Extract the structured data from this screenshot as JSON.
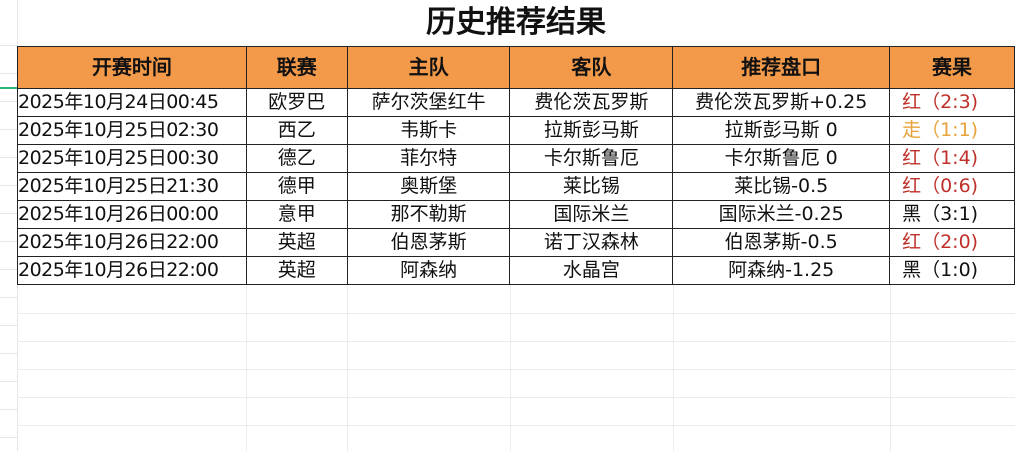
{
  "title": "历史推荐结果",
  "columns": [
    "开赛时间",
    "联赛",
    "主队",
    "客队",
    "推荐盘口",
    "赛果"
  ],
  "colors": {
    "header_bg": "#f39a4a",
    "red": "#c0302a",
    "push": "#e8a33a",
    "black": "#111111",
    "selection": "#2bb673"
  },
  "rows": [
    {
      "time": "2025年10月24日00:45",
      "league": "欧罗巴",
      "home": "萨尔茨堡红牛",
      "away": "费伦茨瓦罗斯",
      "pick": "费伦茨瓦罗斯+0.25",
      "result": "红（2:3)",
      "status": "red"
    },
    {
      "time": "2025年10月25日02:30",
      "league": "西乙",
      "home": "韦斯卡",
      "away": "拉斯彭马斯",
      "pick": "拉斯彭马斯 0",
      "result": "走（1:1)",
      "status": "push"
    },
    {
      "time": "2025年10月25日00:30",
      "league": "德乙",
      "home": "菲尔特",
      "away": "卡尔斯鲁厄",
      "pick": "卡尔斯鲁厄 0",
      "result": "红（1:4)",
      "status": "red"
    },
    {
      "time": "2025年10月25日21:30",
      "league": "德甲",
      "home": "奥斯堡",
      "away": "莱比锡",
      "pick": "莱比锡-0.5",
      "result": "红（0:6)",
      "status": "red"
    },
    {
      "time": "2025年10月26日00:00",
      "league": "意甲",
      "home": "那不勒斯",
      "away": "国际米兰",
      "pick": "国际米兰-0.25",
      "result": "黑（3:1)",
      "status": "black"
    },
    {
      "time": "2025年10月26日22:00",
      "league": "英超",
      "home": "伯恩茅斯",
      "away": "诺丁汉森林",
      "pick": "伯恩茅斯-0.5",
      "result": "红（2:0)",
      "status": "red"
    },
    {
      "time": "2025年10月26日22:00",
      "league": "英超",
      "home": "阿森纳",
      "away": "水晶宫",
      "pick": "阿森纳-1.25",
      "result": "黑（1:0)",
      "status": "black"
    }
  ]
}
